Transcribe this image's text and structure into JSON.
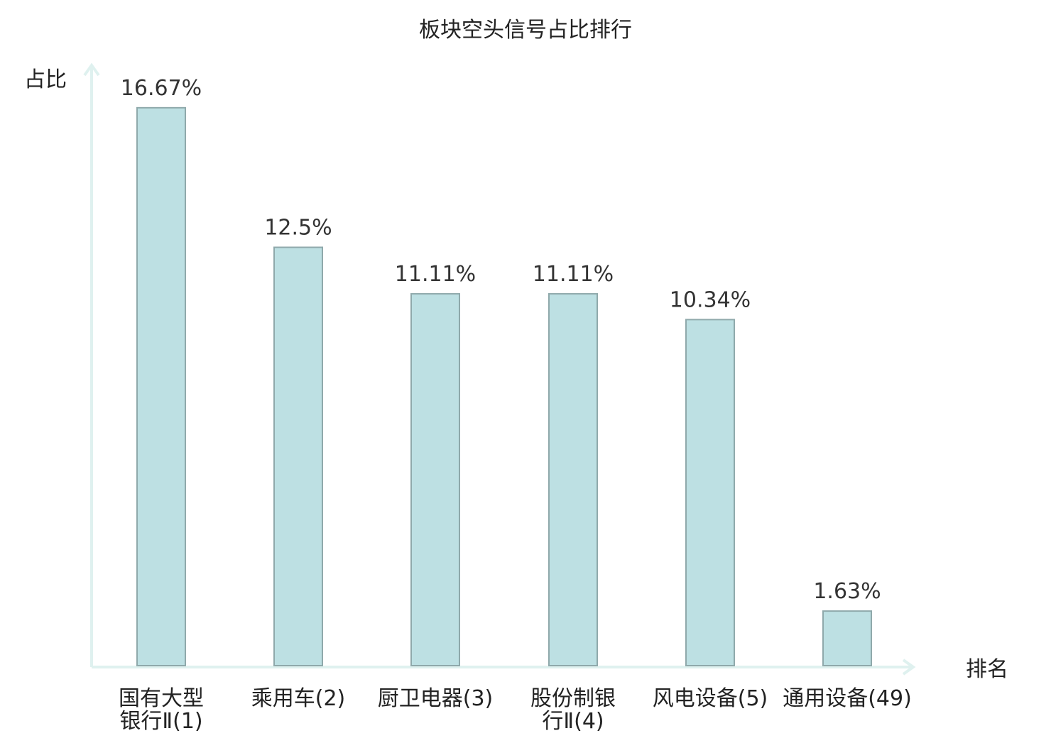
{
  "chart_data": {
    "type": "bar",
    "title": "板块空头信号占比排行",
    "ylabel": "占比",
    "xlabel": "排名",
    "ylim": [
      0,
      17.5
    ],
    "grid": false,
    "categories": [
      [
        "国有大型",
        "银行Ⅱ(1)"
      ],
      [
        "乘用车(2)"
      ],
      [
        "厨卫电器(3)"
      ],
      [
        "股份制银",
        "行Ⅱ(4)"
      ],
      [
        "风电设备(5)"
      ],
      [
        "通用设备(49)"
      ]
    ],
    "values": [
      16.67,
      12.5,
      11.11,
      11.11,
      10.34,
      1.63
    ],
    "value_labels": [
      "16.67%",
      "12.5%",
      "11.11%",
      "11.11%",
      "10.34%",
      "1.63%"
    ],
    "highlight_index": 5,
    "colors": {
      "bar_fill": "#bde0e3",
      "bar_stroke": "#8fa9ab",
      "axis": "#dff1ef",
      "highlight_text": "#e02020",
      "text": "#222222"
    }
  }
}
